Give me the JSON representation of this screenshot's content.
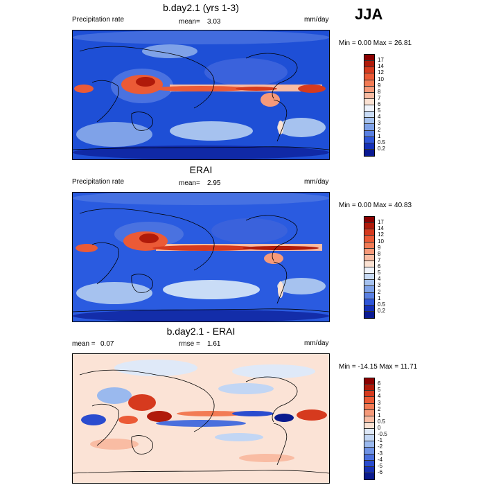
{
  "season": "JJA",
  "coast_color": "#000000",
  "panels": [
    {
      "title": "b.day2.1 (yrs 1-3)",
      "left_label": "Precipitation rate",
      "mid_label": "mean=",
      "mid_value": "3.03",
      "units": "mm/day",
      "range_text": "Min =   0.00 Max =  26.81",
      "field": "precip",
      "background": "#1e4fd6"
    },
    {
      "title": "ERAI",
      "left_label": "Precipitation rate",
      "mid_label": "mean=",
      "mid_value": "2.95",
      "units": "mm/day",
      "range_text": "Min =   0.00 Max =  40.83",
      "field": "precip",
      "background": "#2a5be0"
    },
    {
      "title": "b.day2.1 - ERAI",
      "left_label": "mean =",
      "left_value": "0.07",
      "mid_label": "rmse =",
      "mid_value": "1.61",
      "units": "mm/day",
      "range_text": "Min = -14.15 Max =  11.71",
      "field": "diff",
      "background": "#fbe3d6"
    }
  ],
  "colorbars": [
    {
      "labels": [
        "17",
        "14",
        "12",
        "10",
        "9",
        "8",
        "7",
        "6",
        "5",
        "4",
        "3",
        "2",
        "1",
        "0.5",
        "0.2"
      ],
      "colors": [
        "#8b0000",
        "#b01a0a",
        "#d63a1e",
        "#eb5a36",
        "#f27b55",
        "#f69a7a",
        "#f9bca3",
        "#fbe2d3",
        "#f0f4fb",
        "#c9dcf6",
        "#a6c2ef",
        "#7fa2e8",
        "#5a80e2",
        "#2f56d9",
        "#1430b8",
        "#0a1a92"
      ]
    },
    {
      "labels": [
        "17",
        "14",
        "12",
        "10",
        "9",
        "8",
        "7",
        "6",
        "5",
        "4",
        "3",
        "2",
        "1",
        "0.5",
        "0.2"
      ],
      "colors": [
        "#8b0000",
        "#b01a0a",
        "#d63a1e",
        "#eb5a36",
        "#f27b55",
        "#f69a7a",
        "#f9bca3",
        "#fbe2d3",
        "#f0f4fb",
        "#c9dcf6",
        "#a6c2ef",
        "#7fa2e8",
        "#5a80e2",
        "#2f56d9",
        "#1430b8",
        "#0a1a92"
      ]
    },
    {
      "labels": [
        "6",
        "5",
        "4",
        "3",
        "2",
        "1",
        "0.5",
        "0",
        "-0.5",
        "-1",
        "-2",
        "-3",
        "-4",
        "-5",
        "-6"
      ],
      "colors": [
        "#8b0000",
        "#b01a0a",
        "#d63a1e",
        "#eb5a36",
        "#f27b55",
        "#f69a7a",
        "#f9bca3",
        "#fbe2d3",
        "#dfe9f8",
        "#c2d6f4",
        "#9ab9ee",
        "#6f93e6",
        "#4a6fdd",
        "#2a4ccf",
        "#1730b3",
        "#0a1a8e"
      ]
    }
  ]
}
